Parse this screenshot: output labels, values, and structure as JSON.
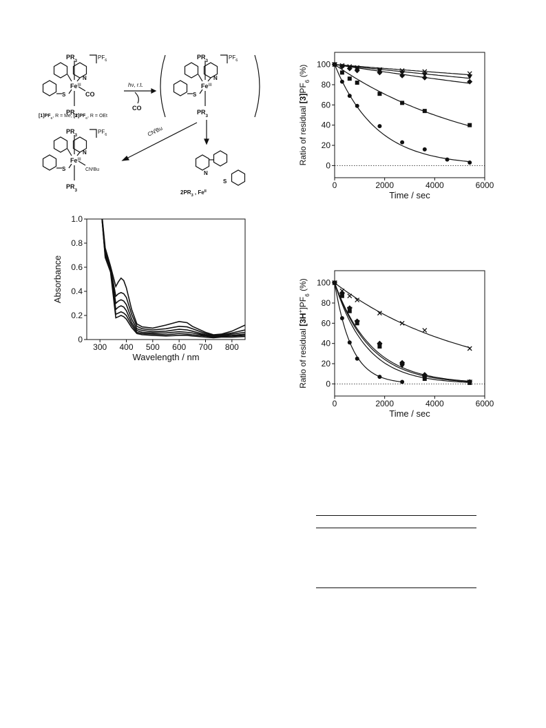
{
  "scheme": {
    "complex_top_left": {
      "top_ligand": "PR3",
      "metal": "Fe",
      "oxidation": "III",
      "ligand_right": "CO",
      "bottom_ligand": "PR3",
      "n_label": "N",
      "s_label": "S",
      "counterion": "PF6"
    },
    "legend_line": {
      "part1": "[1]PF",
      "sub1": "6",
      "part2": ", R = Me; ",
      "part3": "[2]PF",
      "sub2": "6",
      "part4": ", R = OEt"
    },
    "arrow_photo": {
      "label_h": "h",
      "label_rest": "ν, r.t.",
      "released": "CO"
    },
    "intermediate": {
      "top_ligand": "PR3",
      "metal": "Fe",
      "oxidation": "III",
      "bottom_ligand": "PR3",
      "n_label": "N",
      "s_label": "S",
      "counterion": "PF6"
    },
    "arrow_isocyanide": {
      "label_pre": "CN",
      "label_sup": "t",
      "label_post": "Bu"
    },
    "product_isocyanide": {
      "top_ligand": "PR3",
      "metal": "Fe",
      "oxidation": "III",
      "ligand_right": "CN",
      "ligand_right_sup": "t",
      "ligand_right_post": "Bu",
      "bottom_ligand": "PR3",
      "n_label": "N",
      "s_label": "S",
      "counterion": "PF6"
    },
    "product_decomp": {
      "n_label": "N",
      "s_label": "S",
      "byproducts_pre": "2PR",
      "byproducts_sub": "3",
      "byproducts_mid": " , Fe",
      "byproducts_sup": "II"
    },
    "colors": {
      "ink": "#111111"
    }
  },
  "chart_data": [
    {
      "type": "line",
      "title": "",
      "xlabel": "Wavelength / nm",
      "ylabel": "Absorbance",
      "xlim": [
        250,
        850
      ],
      "ylim": [
        0,
        1.0
      ],
      "xticks": [
        "300",
        "400",
        "500",
        "600",
        "700",
        "800"
      ],
      "yticks": [
        "0",
        "0.2",
        "0.4",
        "0.6",
        "0.8",
        "1.0"
      ],
      "grid": false,
      "series": [
        {
          "x": [
            300,
            320,
            340,
            360,
            370,
            380,
            390,
            400,
            420,
            440,
            460,
            500,
            550,
            600,
            630,
            650,
            700,
            730,
            760,
            800,
            850
          ],
          "y": [
            1.2,
            0.76,
            0.61,
            0.44,
            0.48,
            0.51,
            0.49,
            0.43,
            0.25,
            0.13,
            0.105,
            0.095,
            0.12,
            0.15,
            0.14,
            0.11,
            0.06,
            0.04,
            0.045,
            0.07,
            0.12
          ]
        },
        {
          "x": [
            300,
            320,
            340,
            360,
            370,
            380,
            390,
            400,
            420,
            440,
            460,
            500,
            550,
            600,
            630,
            650,
            700,
            730,
            760,
            800,
            850
          ],
          "y": [
            1.2,
            0.74,
            0.6,
            0.36,
            0.38,
            0.39,
            0.38,
            0.35,
            0.21,
            0.11,
            0.09,
            0.08,
            0.09,
            0.11,
            0.105,
            0.09,
            0.05,
            0.035,
            0.04,
            0.055,
            0.08
          ]
        },
        {
          "x": [
            300,
            320,
            340,
            360,
            370,
            380,
            390,
            400,
            420,
            440,
            460,
            500,
            550,
            600,
            630,
            650,
            700,
            730,
            760,
            800,
            850
          ],
          "y": [
            1.2,
            0.72,
            0.59,
            0.3,
            0.32,
            0.33,
            0.32,
            0.29,
            0.17,
            0.09,
            0.075,
            0.065,
            0.07,
            0.085,
            0.08,
            0.07,
            0.04,
            0.03,
            0.035,
            0.045,
            0.06
          ]
        },
        {
          "x": [
            300,
            320,
            340,
            360,
            370,
            380,
            390,
            400,
            420,
            440,
            460,
            500,
            550,
            600,
            630,
            650,
            700,
            730,
            760,
            800,
            850
          ],
          "y": [
            1.2,
            0.7,
            0.58,
            0.25,
            0.27,
            0.28,
            0.27,
            0.24,
            0.14,
            0.075,
            0.06,
            0.055,
            0.055,
            0.065,
            0.06,
            0.055,
            0.035,
            0.025,
            0.03,
            0.035,
            0.045
          ]
        },
        {
          "x": [
            300,
            320,
            340,
            360,
            370,
            380,
            390,
            400,
            420,
            440,
            460,
            500,
            550,
            600,
            630,
            650,
            700,
            730,
            760,
            800,
            850
          ],
          "y": [
            1.2,
            0.69,
            0.57,
            0.21,
            0.22,
            0.23,
            0.22,
            0.2,
            0.12,
            0.06,
            0.05,
            0.045,
            0.04,
            0.05,
            0.045,
            0.04,
            0.03,
            0.02,
            0.025,
            0.03,
            0.035
          ]
        },
        {
          "x": [
            300,
            320,
            340,
            360,
            370,
            380,
            390,
            400,
            420,
            440,
            460,
            500,
            550,
            600,
            630,
            650,
            700,
            730,
            760,
            800,
            850
          ],
          "y": [
            1.2,
            0.68,
            0.56,
            0.18,
            0.19,
            0.2,
            0.19,
            0.17,
            0.1,
            0.05,
            0.04,
            0.035,
            0.03,
            0.035,
            0.035,
            0.03,
            0.02,
            0.015,
            0.02,
            0.02,
            0.025
          ]
        }
      ]
    },
    {
      "type": "scatter",
      "title": "",
      "xlabel": "Time / sec",
      "ylabel_pre": "Ratio of residual ",
      "ylabel_bold": "[3]",
      "ylabel_mid": "PF",
      "ylabel_sub": "6",
      "ylabel_post": " (%)",
      "xlim": [
        0,
        6000
      ],
      "ylim": [
        -12,
        112
      ],
      "xticks": [
        "0",
        "2000",
        "4000",
        "6000"
      ],
      "yticks": [
        "0",
        "20",
        "40",
        "60",
        "80",
        "100"
      ],
      "grid": false,
      "series": [
        {
          "marker": "x",
          "x": [
            0,
            300,
            600,
            900,
            1800,
            2700,
            3600,
            5400
          ],
          "y": [
            100,
            99,
            98,
            97,
            95,
            94,
            93,
            91
          ]
        },
        {
          "marker": "triangle",
          "x": [
            0,
            300,
            600,
            900,
            1800,
            2700,
            3600,
            5400
          ],
          "y": [
            100,
            98,
            97,
            96,
            94,
            92,
            90,
            88
          ]
        },
        {
          "marker": "diamond",
          "x": [
            0,
            300,
            600,
            900,
            1800,
            2700,
            3600,
            5400
          ],
          "y": [
            100,
            98,
            96,
            94,
            92,
            89,
            87,
            83
          ]
        },
        {
          "marker": "square",
          "x": [
            0,
            300,
            600,
            900,
            1800,
            2700,
            3600,
            5400
          ],
          "y": [
            100,
            92,
            86,
            82,
            71,
            62,
            54,
            40
          ]
        },
        {
          "marker": "circle",
          "x": [
            0,
            300,
            600,
            900,
            1800,
            2700,
            3600,
            4500,
            5400
          ],
          "y": [
            100,
            83,
            69,
            59,
            39,
            23,
            16,
            6,
            3
          ]
        }
      ]
    },
    {
      "type": "scatter",
      "title": "",
      "xlabel": "Time / sec",
      "ylabel_pre": "Ratio of residual ",
      "ylabel_bold": "[3H",
      "ylabel_sup": "+",
      "ylabel_mid": "]PF",
      "ylabel_sub": "6",
      "ylabel_post": " (%)",
      "xlim": [
        0,
        6000
      ],
      "ylim": [
        -12,
        112
      ],
      "xticks": [
        "0",
        "2000",
        "4000",
        "6000"
      ],
      "yticks": [
        "0",
        "20",
        "40",
        "60",
        "80",
        "100"
      ],
      "grid": false,
      "series": [
        {
          "marker": "x",
          "x": [
            0,
            300,
            600,
            900,
            1800,
            2700,
            3600,
            5400
          ],
          "y": [
            100,
            92,
            87,
            83,
            70,
            60,
            53,
            35
          ]
        },
        {
          "marker": "triangle",
          "x": [
            0,
            300,
            600,
            900,
            1800,
            2700,
            3600,
            5400
          ],
          "y": [
            100,
            88,
            74,
            61,
            38,
            18,
            6,
            2
          ]
        },
        {
          "marker": "diamond",
          "x": [
            0,
            300,
            600,
            900,
            1800,
            2700,
            3600,
            5400
          ],
          "y": [
            100,
            90,
            75,
            62,
            40,
            21,
            9,
            2
          ]
        },
        {
          "marker": "square",
          "x": [
            0,
            300,
            600,
            900,
            1800,
            2700,
            3600,
            5400
          ],
          "y": [
            100,
            87,
            72,
            60,
            37,
            20,
            5,
            1
          ]
        },
        {
          "marker": "circle",
          "x": [
            0,
            300,
            600,
            900,
            1800,
            2700
          ],
          "y": [
            100,
            65,
            41,
            25,
            7,
            2
          ]
        }
      ]
    }
  ]
}
